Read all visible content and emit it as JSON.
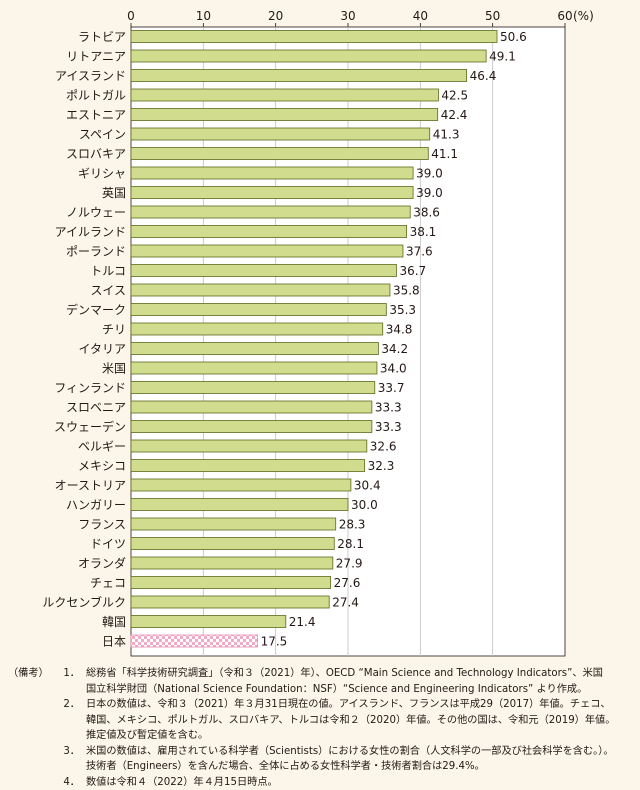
{
  "chart_data": {
    "type": "bar",
    "orientation": "horizontal",
    "unit_label": "(%)",
    "xlim": [
      0,
      60
    ],
    "ticks": [
      0,
      10,
      20,
      30,
      40,
      50,
      60
    ],
    "grid": true,
    "colors": {
      "bar": "#d2dc8e",
      "bar_border": "#5c6a1c",
      "highlight_pattern": "#f2a9c4",
      "background": "#fbf6e9"
    },
    "categories": [
      "ラトビア",
      "リトアニア",
      "アイスランド",
      "ポルトガル",
      "エストニア",
      "スペイン",
      "スロバキア",
      "ギリシャ",
      "英国",
      "ノルウェー",
      "アイルランド",
      "ポーランド",
      "トルコ",
      "スイス",
      "デンマーク",
      "チリ",
      "イタリア",
      "米国",
      "フィンランド",
      "スロベニア",
      "スウェーデン",
      "ベルギー",
      "メキシコ",
      "オーストリア",
      "ハンガリー",
      "フランス",
      "ドイツ",
      "オランダ",
      "チェコ",
      "ルクセンブルク",
      "韓国",
      "日本"
    ],
    "values": [
      50.6,
      49.1,
      46.4,
      42.5,
      42.4,
      41.3,
      41.1,
      39.0,
      39.0,
      38.6,
      38.1,
      37.6,
      36.7,
      35.8,
      35.3,
      34.8,
      34.2,
      34.0,
      33.7,
      33.3,
      33.3,
      32.6,
      32.3,
      30.4,
      30.0,
      28.3,
      28.1,
      27.9,
      27.6,
      27.4,
      21.4,
      17.5
    ],
    "value_labels": [
      "50.6",
      "49.1",
      "46.4",
      "42.5",
      "42.4",
      "41.3",
      "41.1",
      "39.0",
      "39.0",
      "38.6",
      "38.1",
      "37.6",
      "36.7",
      "35.8",
      "35.3",
      "34.8",
      "34.2",
      "34.0",
      "33.7",
      "33.3",
      "33.3",
      "32.6",
      "32.3",
      "30.4",
      "30.0",
      "28.3",
      "28.1",
      "27.9",
      "27.6",
      "27.4",
      "21.4",
      "17.5"
    ],
    "highlight": "日本"
  },
  "notes": {
    "label": "（備考）",
    "items": [
      {
        "num": "1．",
        "lines": [
          "総務省「科学技術研究調査」（令和３（2021）年）、OECD “Main Science and Technology Indicators”、米国",
          "国立科学財団（National Science Foundation：NSF）“Science and Engineering Indicators” より作成。"
        ]
      },
      {
        "num": "2．",
        "lines": [
          "日本の数値は、令和３（2021）年３月31日現在の値。アイスランド、フランスは平成29（2017）年値。チェコ、",
          "韓国、メキシコ、ポルトガル、スロバキア、トルコは令和２（2020）年値。その他の国は、令和元（2019）年値。",
          "推定値及び暫定値を含む。"
        ]
      },
      {
        "num": "3．",
        "lines": [
          "米国の数値は、雇用されている科学者（Scientists）における女性の割合（人文科学の一部及び社会科学を含む。）。",
          "技術者（Engineers）を含んだ場合、全体に占める女性科学者・技術者割合は29.4%。"
        ]
      },
      {
        "num": "4．",
        "lines": [
          "数値は令和４（2022）年４月15日時点。"
        ]
      }
    ]
  }
}
